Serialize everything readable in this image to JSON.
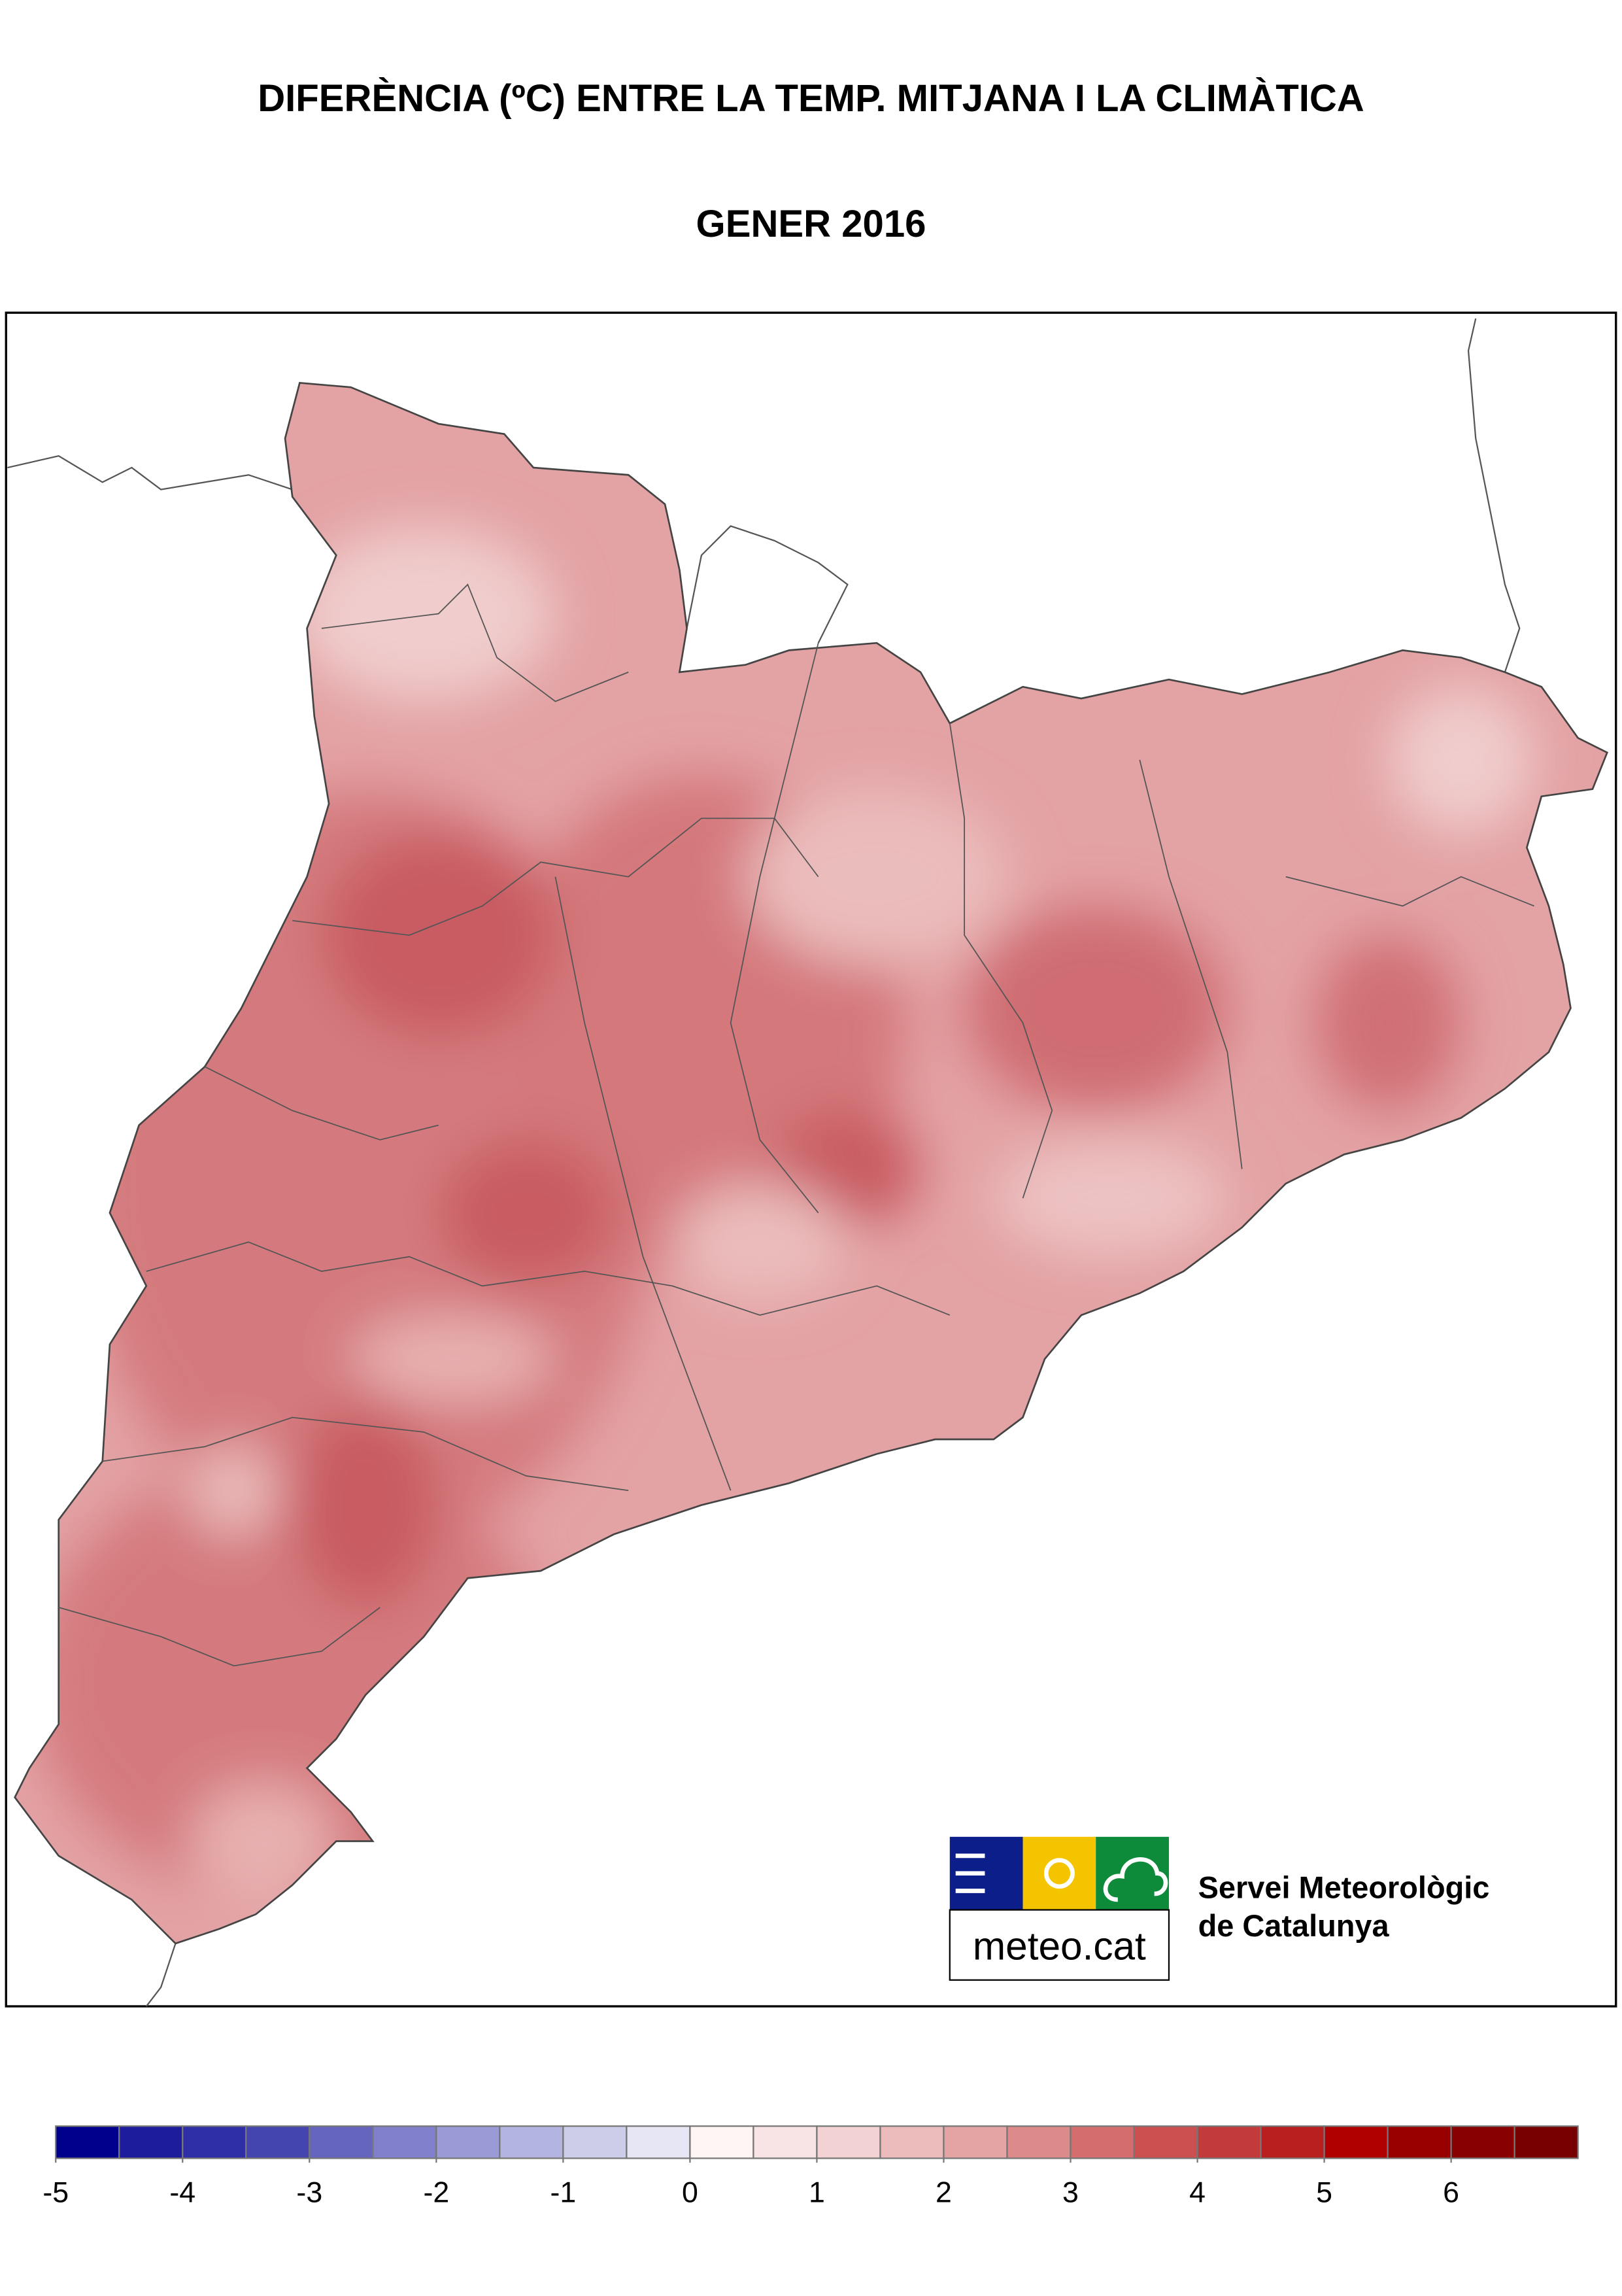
{
  "header": {
    "title": "DIFERÈNCIA (ºC) ENTRE LA TEMP. MITJANA I LA CLIMÀTICA",
    "subtitle": "GENER 2016"
  },
  "logo": {
    "wordmark": "meteo.cat",
    "organization": [
      "Servei Meteorològic",
      "de Catalunya"
    ]
  },
  "colorbar": {
    "lim": [
      -5,
      7
    ],
    "ticks": [
      -5,
      -4,
      -3,
      -2,
      -1,
      0,
      1,
      2,
      3,
      4,
      5,
      6
    ],
    "colors": [
      "#00008c",
      "#1c1c9c",
      "#2e2ea6",
      "#4545b0",
      "#6565c0",
      "#8080cc",
      "#9a9ad6",
      "#b4b4e0",
      "#cdcdea",
      "#e6e6f4",
      "#fff5f5",
      "#f8e4e4",
      "#f2d2d2",
      "#ecbcbc",
      "#e4a4a4",
      "#dc8a8a",
      "#d46e6e",
      "#cc5050",
      "#c23a3a",
      "#b82020",
      "#b00000",
      "#980000",
      "#880000",
      "#780000"
    ]
  }
}
